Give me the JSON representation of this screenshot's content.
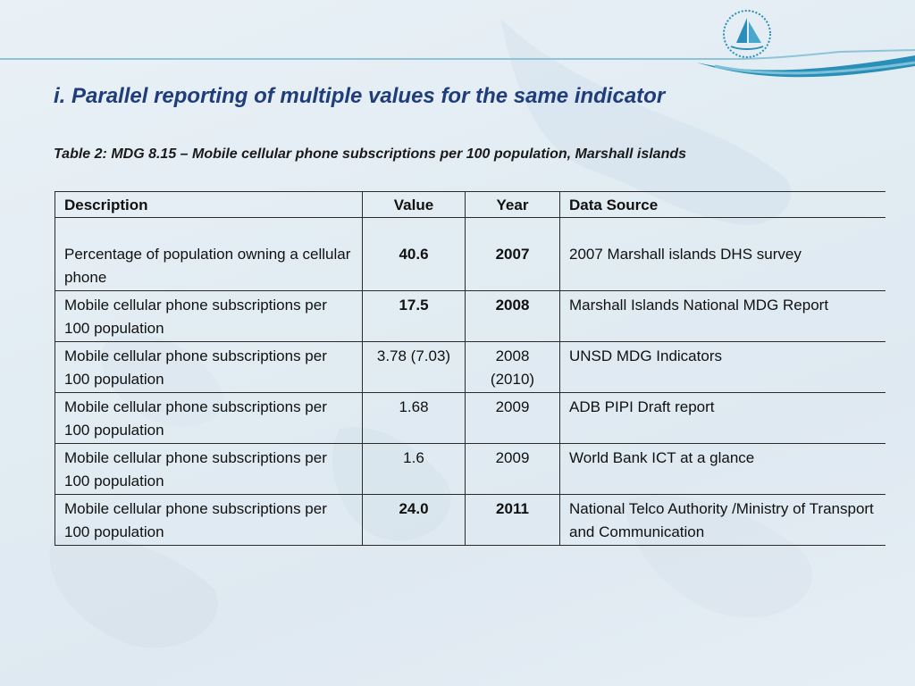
{
  "slide": {
    "title": "i.  Parallel reporting of multiple values for the same indicator",
    "caption": "Table 2:  MDG 8.15 – Mobile cellular phone subscriptions per 100 population, Marshall islands"
  },
  "colors": {
    "title": "#1f3d7a",
    "accent": "#2a8fb8",
    "background": "#e6eef5"
  },
  "logo": {
    "icon": "sailboat-logo-icon"
  },
  "table": {
    "headers": {
      "description": "Description",
      "value": "Value",
      "year": "Year",
      "source": "Data Source"
    },
    "rows": [
      {
        "description": "Percentage of population owning a cellular phone",
        "value": "40.6",
        "year": "2007",
        "source": "2007 Marshall islands DHS survey"
      },
      {
        "description": "Mobile cellular phone subscriptions per 100 population",
        "value": "17.5",
        "year": "2008",
        "source": "Marshall Islands National MDG Report"
      },
      {
        "description": "Mobile cellular phone subscriptions per 100 population",
        "value": "3.78 (7.03)",
        "year": "2008 (2010)",
        "source": "UNSD MDG Indicators"
      },
      {
        "description": "Mobile cellular phone subscriptions per 100 population",
        "value": "1.68",
        "year": "2009",
        "source": "ADB PIPI Draft report"
      },
      {
        "description": "Mobile cellular phone subscriptions per 100 population",
        "value": "1.6",
        "year": "2009",
        "source": "World Bank ICT at a glance"
      },
      {
        "description": "Mobile cellular phone subscriptions per 100 population",
        "value": "24.0",
        "year": "2011",
        "source": "National Telco Authority /Ministry of Transport and Communication"
      }
    ]
  }
}
